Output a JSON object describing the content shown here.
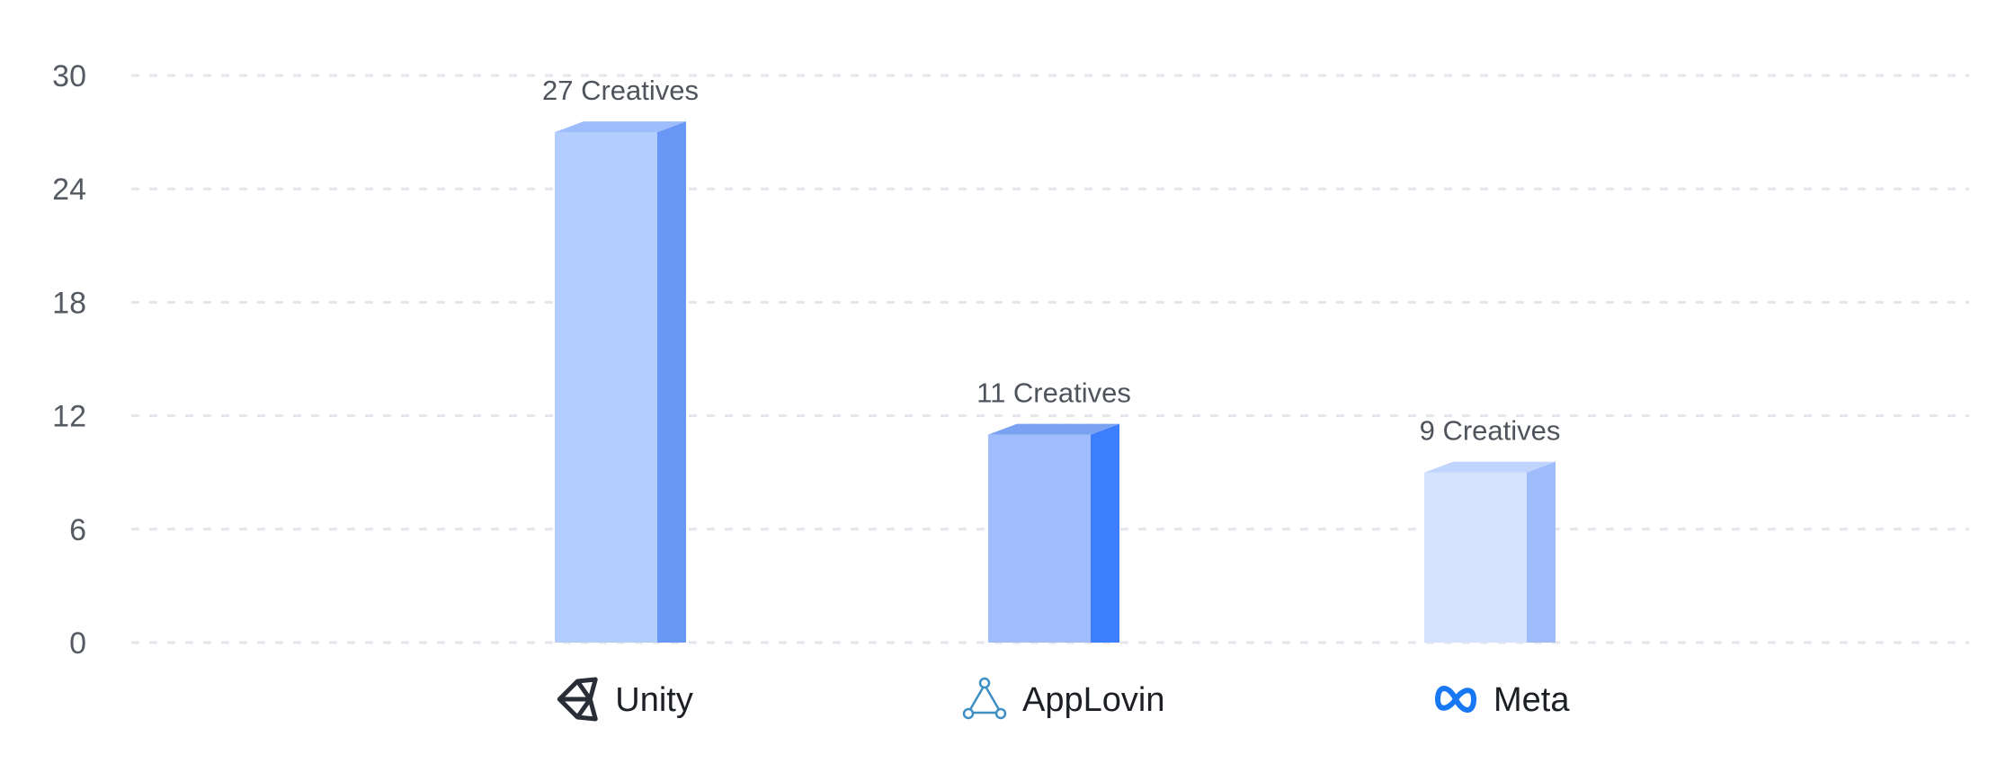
{
  "chart_data": {
    "type": "bar",
    "categories": [
      "Unity",
      "AppLovin",
      "Meta"
    ],
    "values": [
      27,
      11,
      9
    ],
    "data_labels": [
      "27 Creatives",
      "11 Creatives",
      "9 Creatives"
    ],
    "category_icons": [
      "unity-logo-icon",
      "applovin-logo-icon",
      "meta-logo-icon"
    ],
    "bar_colors": [
      {
        "front": "#b3cdfe",
        "side": "#6897f5",
        "top": "#9dbcfb"
      },
      {
        "front": "#a0befd",
        "side": "#3d7efd",
        "top": "#7aa2f3"
      },
      {
        "front": "#d6e3fe",
        "side": "#9ebcf9",
        "top": "#c1d4fd"
      }
    ],
    "title": "",
    "xlabel": "",
    "ylabel": "",
    "ylim": [
      0,
      30
    ],
    "yticks": [
      0,
      6,
      12,
      18,
      24,
      30
    ],
    "grid": true,
    "legend": "none"
  }
}
